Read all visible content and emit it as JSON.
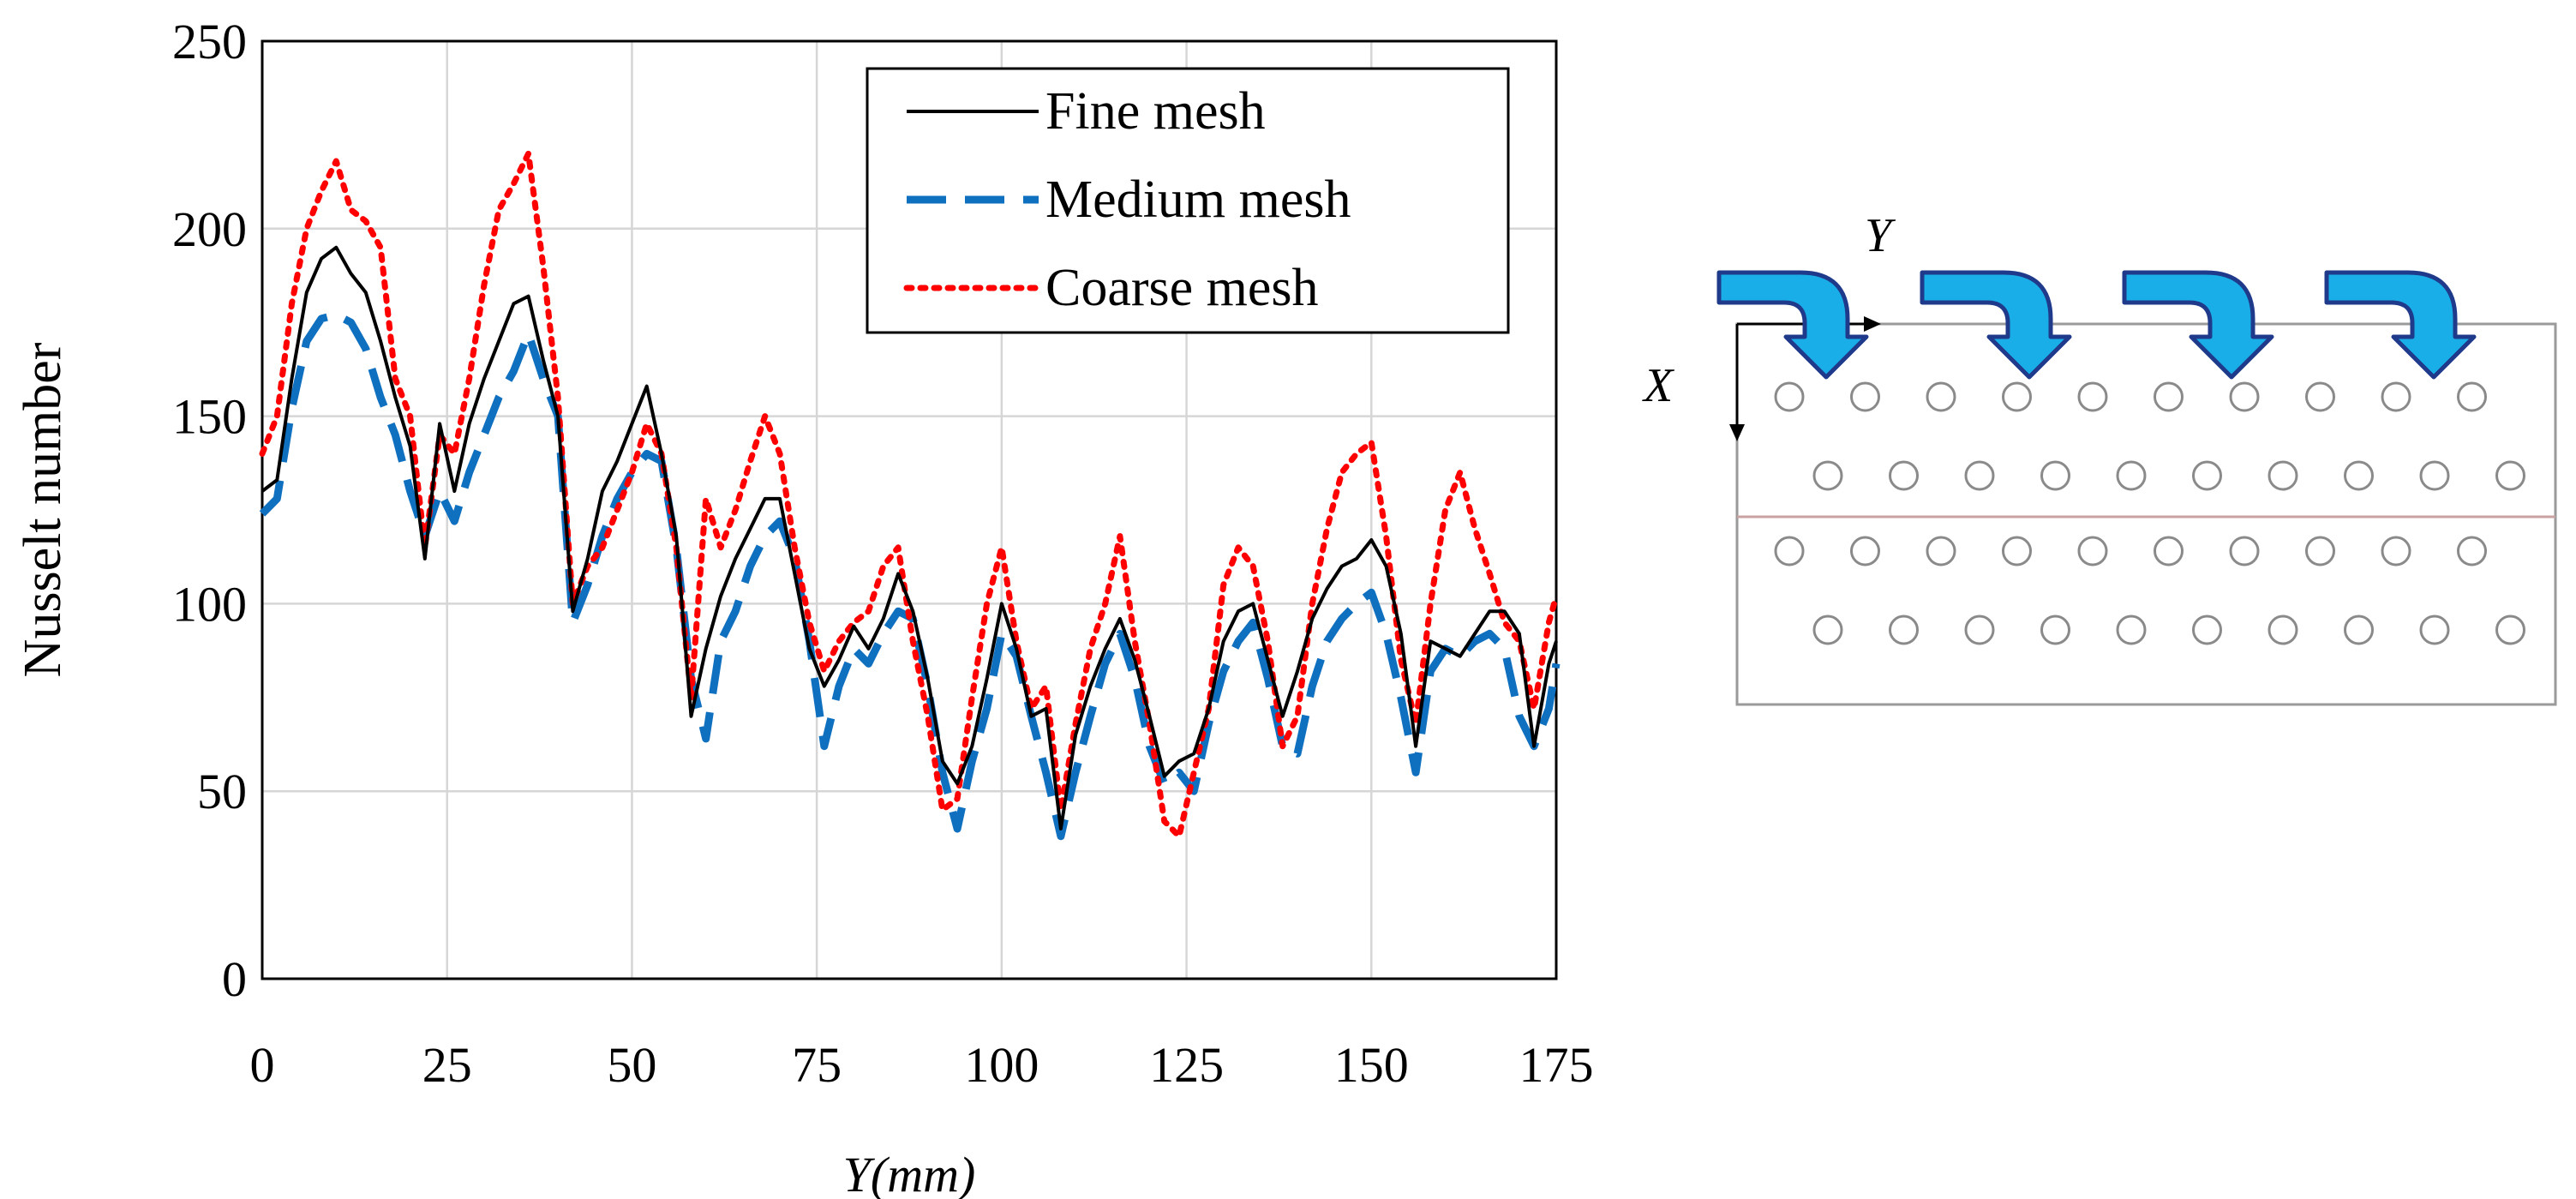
{
  "chart_data": {
    "type": "line",
    "title": "",
    "xlabel": "Y(mm)",
    "ylabel": "Nusselt number",
    "xlim": [
      0,
      175
    ],
    "ylim": [
      0,
      250
    ],
    "xticks": [
      0,
      25,
      50,
      75,
      100,
      125,
      150,
      175
    ],
    "yticks": [
      0,
      50,
      100,
      150,
      200,
      250
    ],
    "grid": true,
    "legend_position": "top-right",
    "series": [
      {
        "name": "Fine mesh",
        "color": "#000000",
        "style": "solid",
        "x": [
          0,
          2,
          4,
          6,
          8,
          10,
          12,
          14,
          16,
          18,
          20,
          22,
          24,
          26,
          28,
          30,
          32,
          34,
          36,
          38,
          40,
          42,
          44,
          46,
          48,
          50,
          52,
          54,
          56,
          58,
          60,
          62,
          64,
          66,
          68,
          70,
          72,
          74,
          76,
          78,
          80,
          82,
          84,
          86,
          88,
          90,
          92,
          94,
          96,
          98,
          100,
          102,
          104,
          106,
          108,
          110,
          112,
          114,
          116,
          118,
          120,
          122,
          124,
          126,
          128,
          130,
          132,
          134,
          136,
          138,
          140,
          142,
          144,
          146,
          148,
          150,
          152,
          154,
          156,
          158,
          160,
          162,
          164,
          166,
          168,
          170,
          172,
          174,
          175
        ],
        "values": [
          130,
          133,
          160,
          183,
          192,
          195,
          188,
          183,
          170,
          155,
          142,
          112,
          148,
          130,
          148,
          160,
          170,
          180,
          182,
          165,
          150,
          98,
          112,
          130,
          138,
          148,
          158,
          140,
          118,
          70,
          88,
          102,
          112,
          120,
          128,
          128,
          108,
          88,
          78,
          85,
          94,
          88,
          96,
          108,
          98,
          80,
          58,
          52,
          62,
          80,
          100,
          88,
          70,
          72,
          40,
          65,
          78,
          88,
          96,
          85,
          70,
          54,
          58,
          60,
          72,
          90,
          98,
          100,
          85,
          70,
          82,
          96,
          104,
          110,
          112,
          117,
          110,
          92,
          62,
          90,
          88,
          86,
          92,
          98,
          98,
          92,
          62,
          84,
          90
        ]
      },
      {
        "name": "Medium mesh",
        "color": "#1070c0",
        "style": "dashed",
        "x": [
          0,
          2,
          4,
          6,
          8,
          10,
          12,
          14,
          16,
          18,
          20,
          22,
          24,
          26,
          28,
          30,
          32,
          34,
          36,
          38,
          40,
          42,
          44,
          46,
          48,
          50,
          52,
          54,
          56,
          58,
          60,
          62,
          64,
          66,
          68,
          70,
          72,
          74,
          76,
          78,
          80,
          82,
          84,
          86,
          88,
          90,
          92,
          94,
          96,
          98,
          100,
          102,
          104,
          106,
          108,
          110,
          112,
          114,
          116,
          118,
          120,
          122,
          124,
          126,
          128,
          130,
          132,
          134,
          136,
          138,
          140,
          142,
          144,
          146,
          148,
          150,
          152,
          154,
          156,
          158,
          160,
          162,
          164,
          166,
          168,
          170,
          172,
          174,
          175
        ],
        "values": [
          124,
          128,
          152,
          170,
          176,
          177,
          175,
          168,
          155,
          145,
          130,
          118,
          130,
          122,
          135,
          145,
          155,
          162,
          172,
          160,
          150,
          95,
          105,
          118,
          128,
          135,
          140,
          138,
          115,
          80,
          64,
          90,
          98,
          110,
          118,
          122,
          112,
          90,
          62,
          78,
          88,
          84,
          92,
          98,
          96,
          78,
          55,
          40,
          58,
          72,
          92,
          86,
          70,
          55,
          38,
          55,
          70,
          84,
          92,
          80,
          62,
          52,
          55,
          50,
          68,
          82,
          90,
          95,
          80,
          62,
          60,
          78,
          90,
          96,
          100,
          103,
          92,
          75,
          55,
          82,
          88,
          86,
          90,
          92,
          88,
          70,
          62,
          72,
          84
        ]
      },
      {
        "name": "Coarse mesh",
        "color": "#ff0000",
        "style": "dotted",
        "x": [
          0,
          2,
          4,
          6,
          8,
          10,
          12,
          14,
          16,
          18,
          20,
          22,
          24,
          26,
          28,
          30,
          32,
          34,
          36,
          38,
          40,
          42,
          44,
          46,
          48,
          50,
          52,
          54,
          56,
          58,
          60,
          62,
          64,
          66,
          68,
          70,
          72,
          74,
          76,
          78,
          80,
          82,
          84,
          86,
          88,
          90,
          92,
          94,
          96,
          98,
          100,
          102,
          104,
          106,
          108,
          110,
          112,
          114,
          116,
          118,
          120,
          122,
          124,
          126,
          128,
          130,
          132,
          134,
          136,
          138,
          140,
          142,
          144,
          146,
          148,
          150,
          152,
          154,
          156,
          158,
          160,
          162,
          164,
          166,
          168,
          170,
          172,
          174,
          175
        ],
        "values": [
          140,
          150,
          180,
          200,
          210,
          218,
          205,
          202,
          195,
          160,
          150,
          115,
          145,
          140,
          160,
          185,
          205,
          212,
          220,
          190,
          155,
          100,
          110,
          115,
          125,
          135,
          148,
          140,
          115,
          75,
          128,
          115,
          125,
          138,
          150,
          140,
          115,
          95,
          82,
          90,
          95,
          98,
          110,
          115,
          90,
          70,
          45,
          48,
          75,
          100,
          115,
          90,
          72,
          78,
          45,
          68,
          88,
          100,
          118,
          90,
          68,
          42,
          38,
          55,
          72,
          105,
          115,
          110,
          90,
          62,
          70,
          100,
          120,
          135,
          140,
          143,
          118,
          85,
          68,
          100,
          125,
          135,
          120,
          108,
          95,
          90,
          72,
          95,
          102
        ]
      }
    ]
  },
  "schematic": {
    "x_axis_label": "X",
    "y_axis_label": "Y",
    "flow_arrow_count": 4,
    "arrow_color": "#1aaee8",
    "rows_of_holes": [
      10,
      10,
      10,
      10
    ]
  }
}
